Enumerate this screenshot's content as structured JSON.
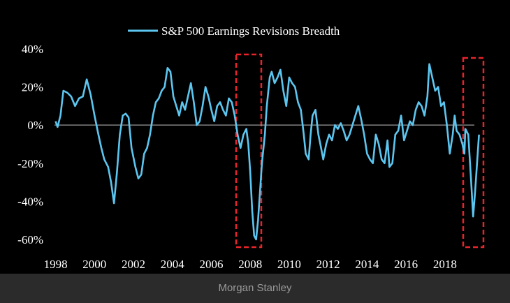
{
  "chart_data": {
    "type": "line",
    "legend": "top",
    "x": [
      1998.0,
      1998.1,
      1998.25,
      1998.4,
      1998.6,
      1998.8,
      1999.0,
      1999.2,
      1999.4,
      1999.6,
      1999.8,
      2000.0,
      2000.2,
      2000.35,
      2000.5,
      2000.7,
      2000.85,
      2001.0,
      2001.15,
      2001.3,
      2001.45,
      2001.6,
      2001.75,
      2001.9,
      2002.1,
      2002.25,
      2002.4,
      2002.55,
      2002.7,
      2002.85,
      2003.0,
      2003.15,
      2003.3,
      2003.45,
      2003.6,
      2003.75,
      2003.9,
      2004.05,
      2004.2,
      2004.35,
      2004.5,
      2004.65,
      2004.8,
      2004.95,
      2005.1,
      2005.25,
      2005.4,
      2005.55,
      2005.7,
      2005.85,
      2006.0,
      2006.15,
      2006.3,
      2006.45,
      2006.6,
      2006.75,
      2006.9,
      2007.05,
      2007.2,
      2007.35,
      2007.5,
      2007.65,
      2007.8,
      2007.9,
      2008.0,
      2008.1,
      2008.2,
      2008.3,
      2008.4,
      2008.5,
      2008.6,
      2008.75,
      2008.85,
      2009.0,
      2009.1,
      2009.25,
      2009.4,
      2009.55,
      2009.7,
      2009.85,
      2010.0,
      2010.15,
      2010.3,
      2010.45,
      2010.6,
      2010.75,
      2010.85,
      2011.0,
      2011.1,
      2011.2,
      2011.35,
      2011.5,
      2011.6,
      2011.75,
      2011.9,
      2012.05,
      2012.2,
      2012.35,
      2012.5,
      2012.65,
      2012.8,
      2012.95,
      2013.1,
      2013.25,
      2013.4,
      2013.55,
      2013.7,
      2013.85,
      2014.0,
      2014.15,
      2014.3,
      2014.45,
      2014.6,
      2014.75,
      2014.9,
      2015.05,
      2015.15,
      2015.3,
      2015.45,
      2015.6,
      2015.75,
      2015.9,
      2016.05,
      2016.2,
      2016.35,
      2016.5,
      2016.65,
      2016.8,
      2016.95,
      2017.1,
      2017.2,
      2017.35,
      2017.5,
      2017.65,
      2017.8,
      2017.95,
      2018.1,
      2018.25,
      2018.4,
      2018.5,
      2018.6,
      2018.75,
      2018.9,
      2019.0,
      2019.05,
      2019.2,
      2019.35,
      2019.45,
      2019.55,
      2019.65,
      2019.75
    ],
    "series": [
      {
        "name": "S&P 500 Earnings Revisions Breadth",
        "color": "#5cc6f0",
        "values": [
          2,
          -1,
          5,
          18,
          17,
          15,
          10,
          14,
          15,
          24,
          16,
          5,
          -5,
          -12,
          -18,
          -22,
          -30,
          -41,
          -25,
          -5,
          5,
          6,
          4,
          -12,
          -22,
          -28,
          -26,
          -15,
          -12,
          -5,
          5,
          12,
          14,
          18,
          20,
          30,
          28,
          15,
          10,
          5,
          12,
          8,
          15,
          22,
          12,
          0,
          2,
          10,
          20,
          15,
          8,
          2,
          10,
          12,
          8,
          5,
          14,
          12,
          5,
          -5,
          -12,
          -5,
          -2,
          -10,
          -25,
          -45,
          -58,
          -60,
          -50,
          -35,
          -20,
          -5,
          10,
          25,
          28,
          22,
          25,
          29,
          18,
          10,
          25,
          22,
          20,
          12,
          8,
          -5,
          -15,
          -18,
          -5,
          5,
          8,
          -5,
          -10,
          -18,
          -10,
          -5,
          -8,
          0,
          -2,
          1,
          -3,
          -8,
          -5,
          0,
          5,
          10,
          3,
          -5,
          -15,
          -18,
          -20,
          -5,
          -10,
          -18,
          -20,
          -8,
          -22,
          -20,
          -5,
          -3,
          5,
          -8,
          -3,
          2,
          0,
          8,
          12,
          10,
          5,
          15,
          32,
          25,
          18,
          20,
          10,
          12,
          0,
          -15,
          -5,
          5,
          -3,
          -5,
          -10,
          -15,
          -2,
          -5,
          -30,
          -48,
          -35,
          -20,
          -5
        ]
      }
    ],
    "xlim": [
      1997.8,
      2019.8
    ],
    "xticks": [
      1998,
      2000,
      2002,
      2004,
      2006,
      2008,
      2010,
      2012,
      2014,
      2016,
      2018
    ],
    "ylim": [
      -65,
      42
    ],
    "yticks": [
      {
        "value": 40,
        "label": "40%"
      },
      {
        "value": 20,
        "label": "20%"
      },
      {
        "value": 0,
        "label": "0%"
      },
      {
        "value": -20,
        "label": "-20%"
      },
      {
        "value": -40,
        "label": "-40%"
      },
      {
        "value": -60,
        "label": "-60%"
      }
    ]
  },
  "footer": {
    "caption": "Morgan Stanley"
  }
}
